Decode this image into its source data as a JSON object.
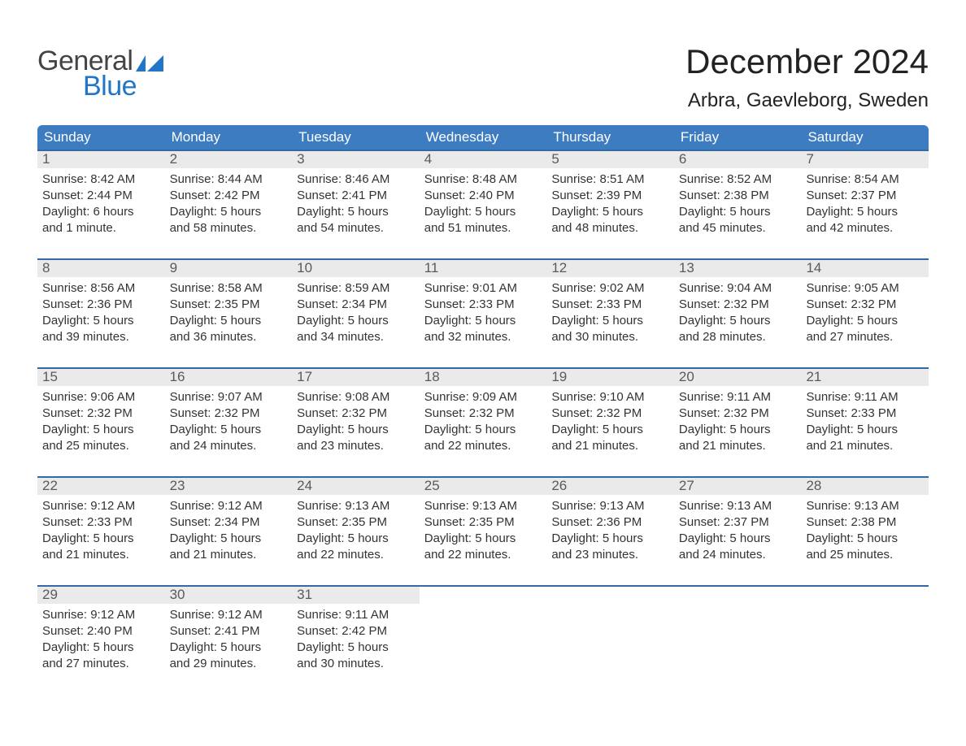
{
  "logo": {
    "text1": "General",
    "text2": "Blue"
  },
  "title": "December 2024",
  "location": "Arbra, Gaevleborg, Sweden",
  "colors": {
    "header_bg": "#3d7cc0",
    "week_border": "#336aa6",
    "daynum_bg": "#eaeaea",
    "logo_blue": "#2176c7",
    "background": "#ffffff"
  },
  "weekdays": [
    "Sunday",
    "Monday",
    "Tuesday",
    "Wednesday",
    "Thursday",
    "Friday",
    "Saturday"
  ],
  "weeks": [
    [
      {
        "n": "1",
        "sunrise": "Sunrise: 8:42 AM",
        "sunset": "Sunset: 2:44 PM",
        "dl1": "Daylight: 6 hours",
        "dl2": "and 1 minute."
      },
      {
        "n": "2",
        "sunrise": "Sunrise: 8:44 AM",
        "sunset": "Sunset: 2:42 PM",
        "dl1": "Daylight: 5 hours",
        "dl2": "and 58 minutes."
      },
      {
        "n": "3",
        "sunrise": "Sunrise: 8:46 AM",
        "sunset": "Sunset: 2:41 PM",
        "dl1": "Daylight: 5 hours",
        "dl2": "and 54 minutes."
      },
      {
        "n": "4",
        "sunrise": "Sunrise: 8:48 AM",
        "sunset": "Sunset: 2:40 PM",
        "dl1": "Daylight: 5 hours",
        "dl2": "and 51 minutes."
      },
      {
        "n": "5",
        "sunrise": "Sunrise: 8:51 AM",
        "sunset": "Sunset: 2:39 PM",
        "dl1": "Daylight: 5 hours",
        "dl2": "and 48 minutes."
      },
      {
        "n": "6",
        "sunrise": "Sunrise: 8:52 AM",
        "sunset": "Sunset: 2:38 PM",
        "dl1": "Daylight: 5 hours",
        "dl2": "and 45 minutes."
      },
      {
        "n": "7",
        "sunrise": "Sunrise: 8:54 AM",
        "sunset": "Sunset: 2:37 PM",
        "dl1": "Daylight: 5 hours",
        "dl2": "and 42 minutes."
      }
    ],
    [
      {
        "n": "8",
        "sunrise": "Sunrise: 8:56 AM",
        "sunset": "Sunset: 2:36 PM",
        "dl1": "Daylight: 5 hours",
        "dl2": "and 39 minutes."
      },
      {
        "n": "9",
        "sunrise": "Sunrise: 8:58 AM",
        "sunset": "Sunset: 2:35 PM",
        "dl1": "Daylight: 5 hours",
        "dl2": "and 36 minutes."
      },
      {
        "n": "10",
        "sunrise": "Sunrise: 8:59 AM",
        "sunset": "Sunset: 2:34 PM",
        "dl1": "Daylight: 5 hours",
        "dl2": "and 34 minutes."
      },
      {
        "n": "11",
        "sunrise": "Sunrise: 9:01 AM",
        "sunset": "Sunset: 2:33 PM",
        "dl1": "Daylight: 5 hours",
        "dl2": "and 32 minutes."
      },
      {
        "n": "12",
        "sunrise": "Sunrise: 9:02 AM",
        "sunset": "Sunset: 2:33 PM",
        "dl1": "Daylight: 5 hours",
        "dl2": "and 30 minutes."
      },
      {
        "n": "13",
        "sunrise": "Sunrise: 9:04 AM",
        "sunset": "Sunset: 2:32 PM",
        "dl1": "Daylight: 5 hours",
        "dl2": "and 28 minutes."
      },
      {
        "n": "14",
        "sunrise": "Sunrise: 9:05 AM",
        "sunset": "Sunset: 2:32 PM",
        "dl1": "Daylight: 5 hours",
        "dl2": "and 27 minutes."
      }
    ],
    [
      {
        "n": "15",
        "sunrise": "Sunrise: 9:06 AM",
        "sunset": "Sunset: 2:32 PM",
        "dl1": "Daylight: 5 hours",
        "dl2": "and 25 minutes."
      },
      {
        "n": "16",
        "sunrise": "Sunrise: 9:07 AM",
        "sunset": "Sunset: 2:32 PM",
        "dl1": "Daylight: 5 hours",
        "dl2": "and 24 minutes."
      },
      {
        "n": "17",
        "sunrise": "Sunrise: 9:08 AM",
        "sunset": "Sunset: 2:32 PM",
        "dl1": "Daylight: 5 hours",
        "dl2": "and 23 minutes."
      },
      {
        "n": "18",
        "sunrise": "Sunrise: 9:09 AM",
        "sunset": "Sunset: 2:32 PM",
        "dl1": "Daylight: 5 hours",
        "dl2": "and 22 minutes."
      },
      {
        "n": "19",
        "sunrise": "Sunrise: 9:10 AM",
        "sunset": "Sunset: 2:32 PM",
        "dl1": "Daylight: 5 hours",
        "dl2": "and 21 minutes."
      },
      {
        "n": "20",
        "sunrise": "Sunrise: 9:11 AM",
        "sunset": "Sunset: 2:32 PM",
        "dl1": "Daylight: 5 hours",
        "dl2": "and 21 minutes."
      },
      {
        "n": "21",
        "sunrise": "Sunrise: 9:11 AM",
        "sunset": "Sunset: 2:33 PM",
        "dl1": "Daylight: 5 hours",
        "dl2": "and 21 minutes."
      }
    ],
    [
      {
        "n": "22",
        "sunrise": "Sunrise: 9:12 AM",
        "sunset": "Sunset: 2:33 PM",
        "dl1": "Daylight: 5 hours",
        "dl2": "and 21 minutes."
      },
      {
        "n": "23",
        "sunrise": "Sunrise: 9:12 AM",
        "sunset": "Sunset: 2:34 PM",
        "dl1": "Daylight: 5 hours",
        "dl2": "and 21 minutes."
      },
      {
        "n": "24",
        "sunrise": "Sunrise: 9:13 AM",
        "sunset": "Sunset: 2:35 PM",
        "dl1": "Daylight: 5 hours",
        "dl2": "and 22 minutes."
      },
      {
        "n": "25",
        "sunrise": "Sunrise: 9:13 AM",
        "sunset": "Sunset: 2:35 PM",
        "dl1": "Daylight: 5 hours",
        "dl2": "and 22 minutes."
      },
      {
        "n": "26",
        "sunrise": "Sunrise: 9:13 AM",
        "sunset": "Sunset: 2:36 PM",
        "dl1": "Daylight: 5 hours",
        "dl2": "and 23 minutes."
      },
      {
        "n": "27",
        "sunrise": "Sunrise: 9:13 AM",
        "sunset": "Sunset: 2:37 PM",
        "dl1": "Daylight: 5 hours",
        "dl2": "and 24 minutes."
      },
      {
        "n": "28",
        "sunrise": "Sunrise: 9:13 AM",
        "sunset": "Sunset: 2:38 PM",
        "dl1": "Daylight: 5 hours",
        "dl2": "and 25 minutes."
      }
    ],
    [
      {
        "n": "29",
        "sunrise": "Sunrise: 9:12 AM",
        "sunset": "Sunset: 2:40 PM",
        "dl1": "Daylight: 5 hours",
        "dl2": "and 27 minutes."
      },
      {
        "n": "30",
        "sunrise": "Sunrise: 9:12 AM",
        "sunset": "Sunset: 2:41 PM",
        "dl1": "Daylight: 5 hours",
        "dl2": "and 29 minutes."
      },
      {
        "n": "31",
        "sunrise": "Sunrise: 9:11 AM",
        "sunset": "Sunset: 2:42 PM",
        "dl1": "Daylight: 5 hours",
        "dl2": "and 30 minutes."
      },
      {
        "empty": true
      },
      {
        "empty": true
      },
      {
        "empty": true
      },
      {
        "empty": true
      }
    ]
  ]
}
